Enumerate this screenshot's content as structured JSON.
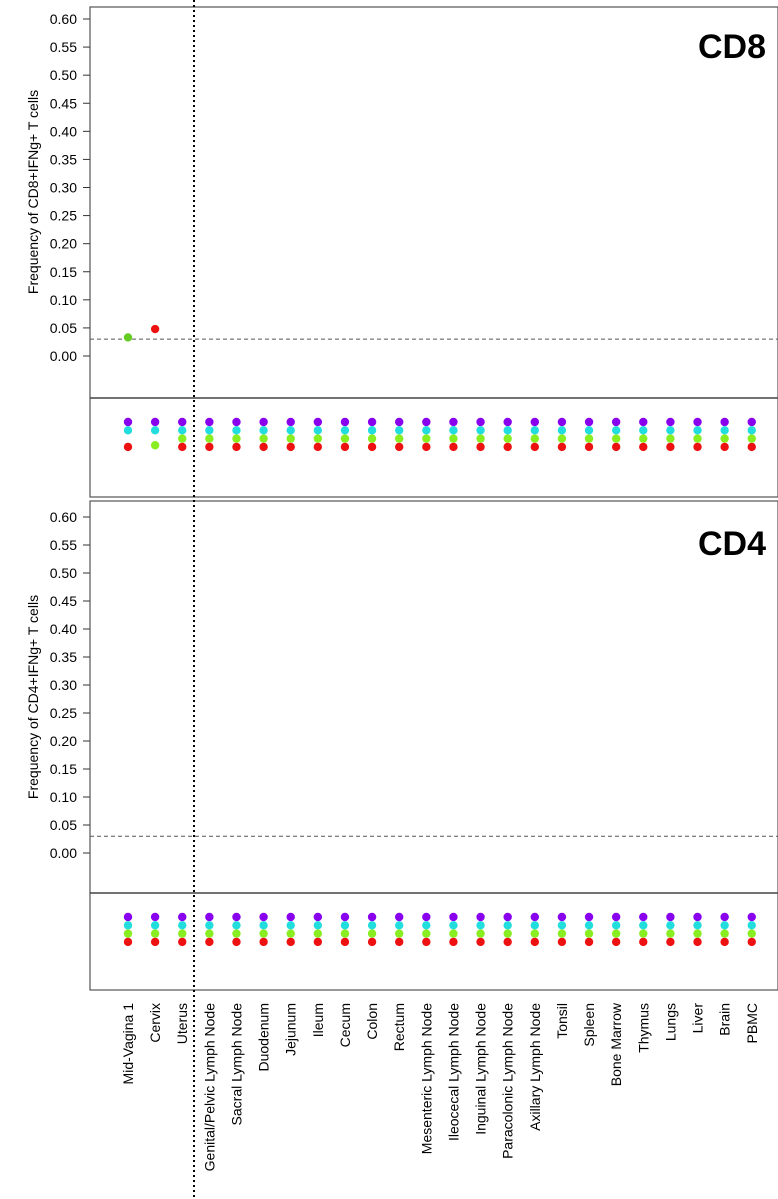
{
  "chart_data": [
    {
      "type": "scatter",
      "title": "CD8",
      "ylabel": "Frequency of CD8+IFNg+ T cells",
      "ylim": [
        0,
        0.6
      ],
      "yticks": [
        "0.00",
        "0.05",
        "0.10",
        "0.15",
        "0.20",
        "0.25",
        "0.30",
        "0.35",
        "0.40",
        "0.45",
        "0.50",
        "0.55",
        "0.60"
      ],
      "threshold": 0.03,
      "points": [
        {
          "category": "Mid-Vagina 1",
          "value": 0.033,
          "color": "#66cc22"
        },
        {
          "category": "Cervix",
          "value": 0.048,
          "color": "#ee1111"
        }
      ],
      "indicator_colors": [
        "#8800ee",
        "#22dddd",
        "#88ee22",
        "#ee1111"
      ],
      "indicator_missing": {
        "Mid-Vagina 1": [
          2
        ],
        "Cervix": [
          3
        ]
      },
      "indicator_offset": {
        "Cervix": {
          "2": 0.8
        }
      }
    },
    {
      "type": "scatter",
      "title": "CD4",
      "ylabel": "Frequency of CD4+IFNg+ T cells",
      "ylim": [
        0,
        0.6
      ],
      "yticks": [
        "0.00",
        "0.05",
        "0.10",
        "0.15",
        "0.20",
        "0.25",
        "0.30",
        "0.35",
        "0.40",
        "0.45",
        "0.50",
        "0.55",
        "0.60"
      ],
      "threshold": 0.03,
      "points": [],
      "indicator_colors": [
        "#8800ee",
        "#22dddd",
        "#88ee22",
        "#ee1111"
      ],
      "indicator_missing": {},
      "indicator_offset": {}
    }
  ],
  "categories": [
    "Mid-Vagina 1",
    "Cervix",
    "Uterus",
    "Genital/Pelvic Lymph Node",
    "Sacral Lymph Node",
    "Duodenum",
    "Jejunum",
    "Ileum",
    "Cecum",
    "Colon",
    "Rectum",
    "Mesenteric Lymph Node",
    "Ileocecal Lymph Node",
    "Inguinal Lymph Node",
    "Paracolonic Lymph Node",
    "Axillary Lymph Node",
    "Tonsil",
    "Spleen",
    "Bone Marrow",
    "Thymus",
    "Lungs",
    "Liver",
    "Brain",
    "PBMC"
  ]
}
